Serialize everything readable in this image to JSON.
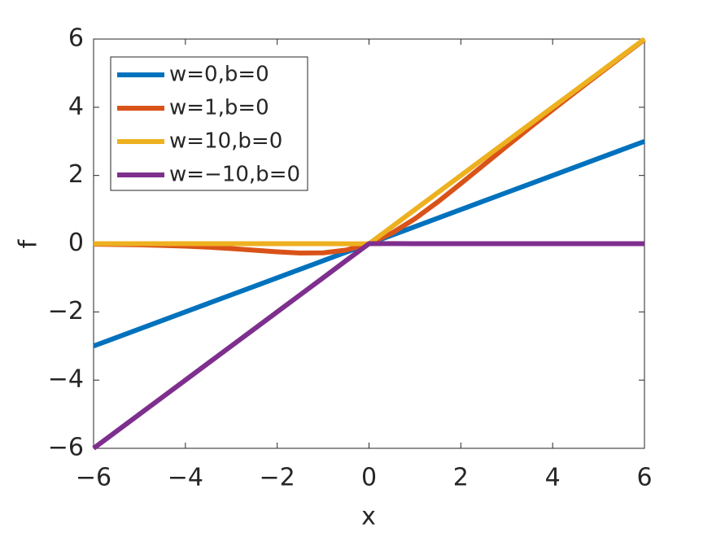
{
  "chart_data": {
    "type": "line",
    "xlabel": "x",
    "ylabel": "f",
    "x": [
      -6,
      -5.5,
      -5,
      -4.5,
      -4,
      -3.5,
      -3,
      -2.5,
      -2,
      -1.5,
      -1,
      -0.5,
      0,
      0.5,
      1,
      1.5,
      2,
      2.5,
      3,
      3.5,
      4,
      4.5,
      5,
      5.5,
      6
    ],
    "series": [
      {
        "name": "w=0,b=0",
        "color": "#0072BD",
        "values": [
          -3,
          -2.75,
          -2.5,
          -2.25,
          -2,
          -1.75,
          -1.5,
          -1.25,
          -1,
          -0.75,
          -0.5,
          -0.25,
          0,
          0.25,
          0.5,
          0.75,
          1,
          1.25,
          1.5,
          1.75,
          2,
          2.25,
          2.5,
          2.75,
          3
        ]
      },
      {
        "name": "w=1,b=0",
        "color": "#D95319",
        "values": [
          -0.0148,
          -0.0224,
          -0.0335,
          -0.0494,
          -0.0719,
          -0.1026,
          -0.1423,
          -0.1896,
          -0.2384,
          -0.2736,
          -0.2689,
          -0.1888,
          0,
          0.3112,
          0.7311,
          1.2264,
          1.7616,
          2.3104,
          2.8577,
          3.3974,
          3.9281,
          4.4506,
          4.9665,
          5.4776,
          5.9852
        ]
      },
      {
        "name": "w=10,b=0",
        "color": "#EDB120",
        "values": [
          0,
          0,
          0,
          0,
          0,
          0,
          0,
          0,
          0,
          0,
          0,
          -0.0033,
          0,
          0.4967,
          1,
          1.5,
          2,
          2.5,
          3,
          3.5,
          4,
          4.5,
          5,
          5.5,
          6
        ]
      },
      {
        "name": "w=−10,b=0",
        "color": "#7E2F8E",
        "values": [
          -6,
          -5.5,
          -5,
          -4.5,
          -4,
          -3.5,
          -3,
          -2.5,
          -2,
          -1.5,
          -1,
          -0.4967,
          0,
          0.0033,
          0,
          0,
          0,
          0,
          0,
          0,
          0,
          0,
          0,
          0,
          0
        ]
      }
    ],
    "xlim": [
      -6,
      6
    ],
    "ylim": [
      -6,
      6
    ],
    "xticks": [
      {
        "value": -6,
        "label": "−6"
      },
      {
        "value": -4,
        "label": "−4"
      },
      {
        "value": -2,
        "label": "−2"
      },
      0,
      2,
      4,
      6
    ],
    "yticks": [
      {
        "value": -6,
        "label": "−6"
      },
      {
        "value": -4,
        "label": "−4"
      },
      {
        "value": -2,
        "label": "−2"
      },
      0,
      2,
      4,
      6
    ],
    "grid": false,
    "legend": "upper left"
  }
}
